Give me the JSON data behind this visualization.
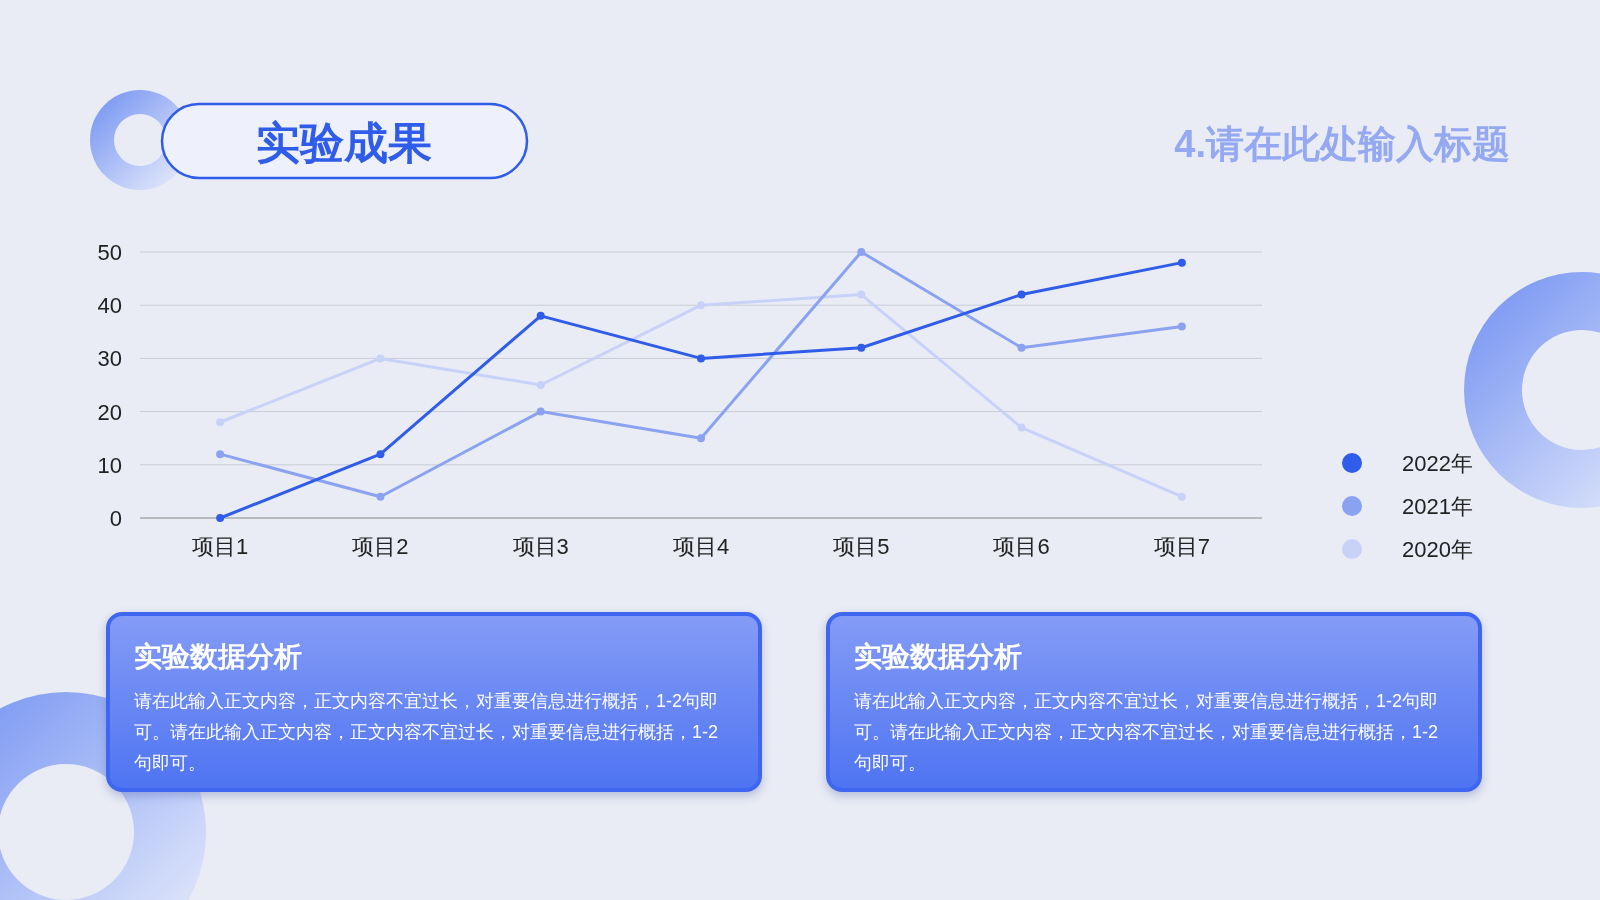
{
  "chart_data": {
    "type": "line",
    "title": "实验成果",
    "subtitle": "4.请在此处输入标题",
    "categories": [
      "项目1",
      "项目2",
      "项目3",
      "项目4",
      "项目5",
      "项目6",
      "项目7"
    ],
    "series": [
      {
        "name": "2022年",
        "color": "#2f5ce8",
        "values": [
          0,
          12,
          38,
          30,
          32,
          42,
          48
        ]
      },
      {
        "name": "2021年",
        "color": "#8aa2f0",
        "values": [
          12,
          4,
          20,
          15,
          50,
          32,
          36
        ]
      },
      {
        "name": "2020年",
        "color": "#c8d2f8",
        "values": [
          18,
          30,
          25,
          40,
          42,
          17,
          4
        ]
      }
    ],
    "ylim": [
      0,
      50
    ],
    "yticks": [
      0,
      10,
      20,
      30,
      40,
      50
    ],
    "grid": "y",
    "legend": "right",
    "marker": "circle",
    "annotations": [
      "实验数据分析",
      "请在此输入正文内容，正文内容不宜过长，对重要信息进行概括，1-2句即可。请在此输入正文内容，正文内容不宜过长，对重要信息进行概括，1-2句即可。",
      "实验数据分析",
      "请在此输入正文内容，正文内容不宜过长，对重要信息进行概括，1-2句即可。请在此输入正文内容，正文内容不宜过长，对重要信息进行概括，1-2句即可。"
    ]
  }
}
